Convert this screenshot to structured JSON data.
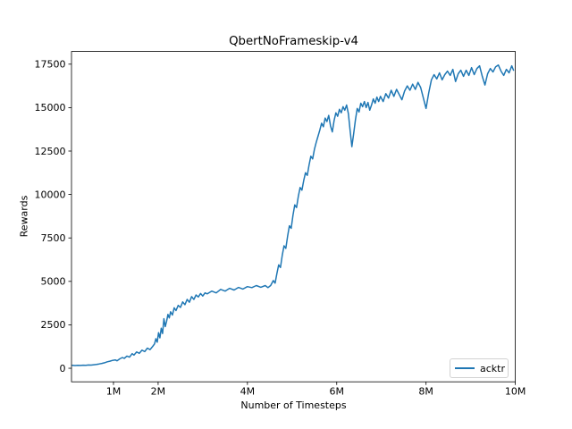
{
  "figure": {
    "background": "#ffffff"
  },
  "chart_data": {
    "type": "line",
    "title": "QbertNoFrameskip-v4",
    "xlabel": "Number of Timesteps",
    "ylabel": "Rewards",
    "x_unit": "millions of timesteps",
    "grid": false,
    "legend_position": "lower right",
    "legend_edge_color": "#d2d2d2",
    "line_color": "#1f77b4",
    "xlim": [
      0.06,
      10.0
    ],
    "ylim": [
      -780,
      18230
    ],
    "xticks": {
      "values": [
        1,
        2,
        4,
        6,
        8,
        10
      ],
      "labels": [
        "1M",
        "2M",
        "4M",
        "6M",
        "8M",
        "10M"
      ]
    },
    "yticks": {
      "values": [
        0,
        2500,
        5000,
        7500,
        10000,
        12500,
        15000,
        17500
      ],
      "labels": [
        "0",
        "2500",
        "5000",
        "7500",
        "10000",
        "12500",
        "15000",
        "17500"
      ]
    },
    "series": [
      {
        "name": "acktr",
        "color": "#1f77b4",
        "x": [
          0.08,
          0.14,
          0.2,
          0.26,
          0.32,
          0.38,
          0.44,
          0.5,
          0.56,
          0.62,
          0.68,
          0.74,
          0.8,
          0.86,
          0.92,
          0.98,
          1.04,
          1.08,
          1.14,
          1.2,
          1.24,
          1.3,
          1.36,
          1.42,
          1.46,
          1.52,
          1.58,
          1.64,
          1.7,
          1.76,
          1.82,
          1.88,
          1.92,
          1.95,
          1.98,
          2.01,
          2.04,
          2.07,
          2.1,
          2.13,
          2.16,
          2.19,
          2.22,
          2.25,
          2.28,
          2.32,
          2.36,
          2.4,
          2.45,
          2.5,
          2.55,
          2.6,
          2.65,
          2.7,
          2.75,
          2.8,
          2.85,
          2.9,
          2.95,
          3.0,
          3.05,
          3.1,
          3.2,
          3.3,
          3.4,
          3.5,
          3.6,
          3.7,
          3.8,
          3.9,
          4.0,
          4.1,
          4.2,
          4.3,
          4.4,
          4.46,
          4.52,
          4.58,
          4.62,
          4.66,
          4.7,
          4.74,
          4.78,
          4.82,
          4.86,
          4.9,
          4.94,
          4.98,
          5.02,
          5.06,
          5.1,
          5.14,
          5.18,
          5.22,
          5.26,
          5.3,
          5.34,
          5.38,
          5.42,
          5.46,
          5.5,
          5.54,
          5.58,
          5.62,
          5.66,
          5.7,
          5.74,
          5.78,
          5.82,
          5.86,
          5.9,
          5.94,
          5.98,
          6.02,
          6.06,
          6.1,
          6.14,
          6.18,
          6.22,
          6.26,
          6.3,
          6.34,
          6.38,
          6.42,
          6.46,
          6.5,
          6.54,
          6.58,
          6.62,
          6.66,
          6.7,
          6.74,
          6.78,
          6.82,
          6.86,
          6.9,
          6.94,
          6.98,
          7.04,
          7.1,
          7.16,
          7.22,
          7.28,
          7.34,
          7.4,
          7.46,
          7.52,
          7.58,
          7.64,
          7.7,
          7.76,
          7.82,
          7.88,
          7.94,
          8.0,
          8.06,
          8.12,
          8.18,
          8.24,
          8.3,
          8.36,
          8.42,
          8.48,
          8.54,
          8.6,
          8.66,
          8.72,
          8.78,
          8.84,
          8.9,
          8.96,
          9.02,
          9.08,
          9.14,
          9.2,
          9.26,
          9.32,
          9.38,
          9.44,
          9.5,
          9.56,
          9.62,
          9.68,
          9.74,
          9.8,
          9.86,
          9.92,
          9.96
        ],
        "y": [
          165,
          155,
          170,
          160,
          175,
          165,
          185,
          180,
          200,
          225,
          250,
          280,
          315,
          370,
          410,
          455,
          480,
          430,
          540,
          620,
          570,
          700,
          640,
          840,
          760,
          940,
          860,
          1040,
          960,
          1160,
          1070,
          1260,
          1400,
          1700,
          1500,
          2050,
          1750,
          2300,
          2000,
          2850,
          2400,
          2700,
          3100,
          2900,
          3250,
          3060,
          3480,
          3320,
          3620,
          3500,
          3820,
          3660,
          3960,
          3800,
          4120,
          3960,
          4220,
          4100,
          4300,
          4160,
          4340,
          4280,
          4440,
          4340,
          4540,
          4440,
          4600,
          4500,
          4650,
          4560,
          4700,
          4640,
          4760,
          4660,
          4760,
          4640,
          4760,
          5050,
          4900,
          5450,
          5950,
          5800,
          6500,
          7050,
          6900,
          7600,
          8200,
          8050,
          8800,
          9400,
          9250,
          9900,
          10400,
          10250,
          10800,
          11250,
          11100,
          11700,
          12200,
          12050,
          12600,
          13000,
          13350,
          13700,
          14100,
          13900,
          14400,
          14200,
          14550,
          13950,
          13600,
          14250,
          14700,
          14500,
          14900,
          14700,
          15050,
          14850,
          15150,
          14650,
          13700,
          12750,
          13500,
          14300,
          14950,
          14750,
          15250,
          15050,
          15350,
          15000,
          15300,
          14850,
          15150,
          15500,
          15250,
          15600,
          15350,
          15650,
          15350,
          15800,
          15550,
          16000,
          15650,
          16050,
          15750,
          15450,
          15950,
          16250,
          16000,
          16350,
          16050,
          16450,
          16150,
          15550,
          14950,
          15850,
          16600,
          16900,
          16650,
          17000,
          16600,
          16900,
          17100,
          16850,
          17200,
          16500,
          16950,
          17150,
          16800,
          17150,
          16850,
          17300,
          16900,
          17250,
          17400,
          16800,
          16300,
          16950,
          17250,
          17050,
          17350,
          17450,
          17100,
          16850,
          17200,
          17000,
          17400,
          17150
        ]
      }
    ]
  }
}
